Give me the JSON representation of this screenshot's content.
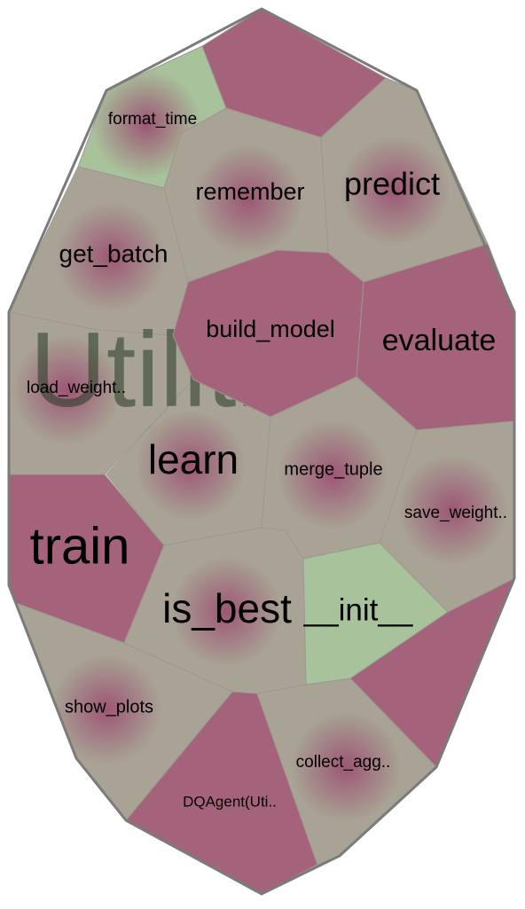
{
  "colors": {
    "green_cell": "#a8c29b",
    "gray_cell": "#a8a394",
    "maroon_cell": "#a4637a",
    "glow": "#9d5675",
    "border": "#7b7b7b",
    "cell_edge": "#9c9890",
    "text": "#000000",
    "watermark": "#223a22"
  },
  "watermark": {
    "text": "Utilities().."
  },
  "cells": [
    {
      "label": "format_time",
      "fill": "green",
      "glow": true
    },
    {
      "label": "",
      "fill": "maroon",
      "glow": false
    },
    {
      "label": "remember",
      "fill": "gray",
      "glow": true
    },
    {
      "label": "predict",
      "fill": "gray",
      "glow": true
    },
    {
      "label": "get_batch",
      "fill": "gray",
      "glow": true
    },
    {
      "label": "build_model",
      "fill": "maroon",
      "glow": false
    },
    {
      "label": "evaluate",
      "fill": "maroon",
      "glow": false
    },
    {
      "label": "load_weight..",
      "fill": "gray",
      "glow": true
    },
    {
      "label": "learn",
      "fill": "gray",
      "glow": true
    },
    {
      "label": "merge_tuple",
      "fill": "gray",
      "glow": true
    },
    {
      "label": "save_weight..",
      "fill": "gray",
      "glow": true
    },
    {
      "label": "train",
      "fill": "maroon",
      "glow": false
    },
    {
      "label": "is_best",
      "fill": "gray",
      "glow": true
    },
    {
      "label": "__init__",
      "fill": "green",
      "glow": false
    },
    {
      "label": "",
      "fill": "maroon",
      "glow": false
    },
    {
      "label": "show_plots",
      "fill": "gray",
      "glow": true
    },
    {
      "label": "DQAgent(Uti..",
      "fill": "maroon",
      "glow": false
    },
    {
      "label": "collect_agg..",
      "fill": "gray",
      "glow": true
    }
  ]
}
